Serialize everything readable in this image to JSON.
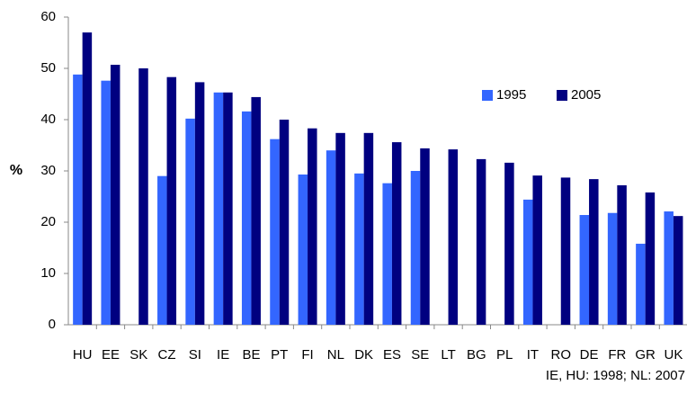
{
  "chart_data": {
    "type": "bar",
    "y_label": "%",
    "note": "IE, HU: 1998; NL: 2007",
    "categories": [
      "HU",
      "EE",
      "SK",
      "CZ",
      "SI",
      "IE",
      "BE",
      "PT",
      "FI",
      "NL",
      "DK",
      "ES",
      "SE",
      "LT",
      "BG",
      "PL",
      "IT",
      "RO",
      "DE",
      "FR",
      "GR",
      "UK"
    ],
    "series": [
      {
        "name": "1995",
        "color": "#3366ff",
        "values": [
          48.8,
          47.6,
          null,
          29,
          40.2,
          45.3,
          41.6,
          36.2,
          29.3,
          34,
          29.5,
          27.6,
          30,
          null,
          null,
          null,
          24.4,
          null,
          21.4,
          21.8,
          15.8,
          22.1
        ]
      },
      {
        "name": "2005",
        "color": "#000080",
        "values": [
          57,
          50.7,
          50,
          48.3,
          47.3,
          45.3,
          44.4,
          40,
          38.3,
          37.4,
          37.4,
          35.6,
          34.4,
          34.2,
          32.3,
          31.6,
          29.1,
          28.7,
          28.4,
          27.2,
          25.8,
          21.2
        ]
      }
    ],
    "ylim": [
      0,
      60
    ],
    "yticks": [
      0,
      10,
      20,
      30,
      40,
      50,
      60
    ],
    "grid": false,
    "legend": "upper-right"
  }
}
